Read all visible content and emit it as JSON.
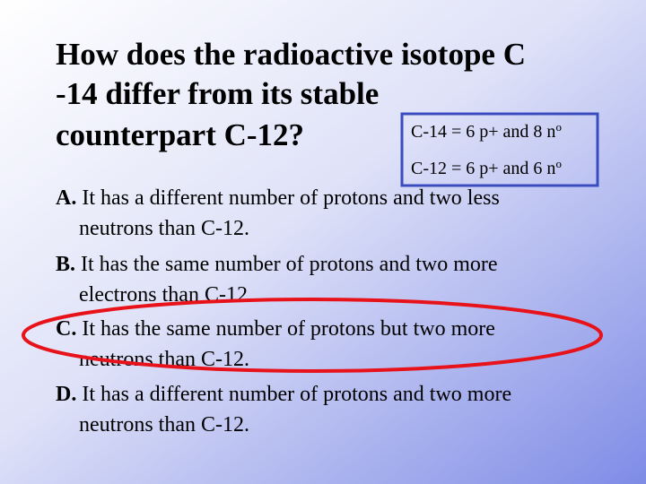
{
  "title": {
    "lines": [
      "How does the radioactive isotope C",
      "-14 differ from its stable",
      "counterpart C-12?"
    ]
  },
  "note": {
    "lines": [
      {
        "text": "C-14 = 6 p+ and 8 n",
        "sup": "o"
      },
      {
        "text": "C-12 = 6 p+ and 6 n",
        "sup": "o"
      }
    ]
  },
  "options": [
    {
      "letter": "A.",
      "lines": [
        "It has a different number of protons and two less",
        "neutrons than C-12."
      ]
    },
    {
      "letter": "B.",
      "lines": [
        "It has the same number of protons and two more",
        "electrons than C-12."
      ]
    },
    {
      "letter": "C.",
      "lines": [
        "It has the same number of protons but two more",
        "neutrons than C-12."
      ]
    },
    {
      "letter": "D.",
      "lines": [
        "It has a different number of protons and two more",
        "neutrons than C-12."
      ]
    }
  ]
}
